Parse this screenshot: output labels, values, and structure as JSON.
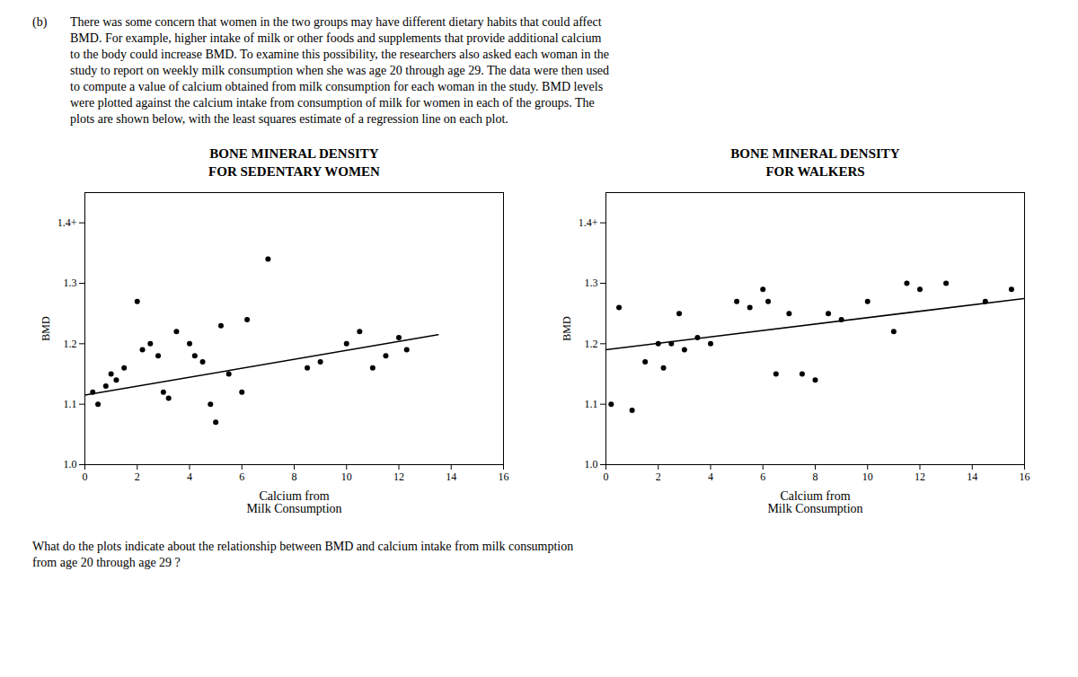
{
  "chart_data": [
    {
      "type": "scatter",
      "title": "BONE MINERAL DENSITY\nFOR SEDENTARY WOMEN",
      "x_label": "Calcium from\nMilk Consumption",
      "y_label": "BMD",
      "series": [
        {
          "type": "scatter",
          "color": "#000000",
          "x": [
            0.3,
            0.5,
            0.8,
            1.0,
            1.2,
            1.5,
            2.0,
            2.2,
            2.5,
            2.8,
            3.0,
            3.2,
            3.5,
            4.0,
            4.2,
            4.5,
            4.8,
            5.0,
            5.2,
            5.5,
            6.0,
            6.2,
            7.0,
            8.5,
            9.0,
            10.0,
            10.5,
            11.0,
            11.5,
            12.0,
            12.3
          ],
          "values": [
            1.12,
            1.1,
            1.13,
            1.15,
            1.14,
            1.16,
            1.27,
            1.19,
            1.2,
            1.18,
            1.12,
            1.11,
            1.22,
            1.2,
            1.18,
            1.17,
            1.1,
            1.07,
            1.23,
            1.15,
            1.12,
            1.24,
            1.34,
            1.16,
            1.17,
            1.2,
            1.22,
            1.16,
            1.18,
            1.21,
            1.19
          ]
        },
        {
          "type": "line",
          "color": "#000000",
          "x": [
            0,
            13.5
          ],
          "values": [
            1.115,
            1.215
          ]
        }
      ],
      "xlim": [
        0,
        16
      ],
      "xticks": [
        0,
        2,
        4,
        6,
        8,
        10,
        12,
        14,
        16
      ],
      "ylim": [
        1.0,
        1.45
      ],
      "yticks": [
        {
          "value": 1.0,
          "label": "1.0"
        },
        {
          "value": 1.1,
          "label": "1.1"
        },
        {
          "value": 1.2,
          "label": "1.2"
        },
        {
          "value": 1.3,
          "label": "1.3"
        },
        {
          "value": 1.4,
          "label": "1.4+"
        }
      ]
    },
    {
      "type": "scatter",
      "title": "BONE MINERAL DENSITY\nFOR WALKERS",
      "x_label": "Calcium from\nMilk Consumption",
      "y_label": "BMD",
      "series": [
        {
          "type": "scatter",
          "color": "#000000",
          "x": [
            0.2,
            0.5,
            1.0,
            1.5,
            2.0,
            2.2,
            2.5,
            2.8,
            3.0,
            3.5,
            4.0,
            5.0,
            5.5,
            6.0,
            6.2,
            6.5,
            7.0,
            7.5,
            8.0,
            8.5,
            9.0,
            10.0,
            11.0,
            11.5,
            12.0,
            13.0,
            14.5,
            15.5
          ],
          "values": [
            1.1,
            1.26,
            1.09,
            1.17,
            1.2,
            1.16,
            1.2,
            1.25,
            1.19,
            1.21,
            1.2,
            1.27,
            1.26,
            1.29,
            1.27,
            1.15,
            1.25,
            1.15,
            1.14,
            1.25,
            1.24,
            1.27,
            1.22,
            1.3,
            1.29,
            1.3,
            1.27,
            1.29
          ]
        },
        {
          "type": "line",
          "color": "#000000",
          "x": [
            0,
            16
          ],
          "values": [
            1.19,
            1.275
          ]
        }
      ],
      "xlim": [
        0,
        16
      ],
      "xticks": [
        0,
        2,
        4,
        6,
        8,
        10,
        12,
        14,
        16
      ],
      "ylim": [
        1.0,
        1.45
      ],
      "yticks": [
        {
          "value": 1.0,
          "label": "1.0"
        },
        {
          "value": 1.1,
          "label": "1.1"
        },
        {
          "value": 1.2,
          "label": "1.2"
        },
        {
          "value": 1.3,
          "label": "1.3"
        },
        {
          "value": 1.4,
          "label": "1.4+"
        }
      ]
    }
  ],
  "annotations": [
    "(b)",
    "There was some concern that women in the two groups may have different dietary habits that could affect\nBMD. For example, higher intake of milk or other foods and supplements that provide additional calcium\nto the body could increase BMD. To examine this possibility, the researchers also asked each woman in the\nstudy to report on weekly milk consumption when she was age 20 through age 29. The data were then used\nto compute a value of calcium obtained from milk consumption for each woman in the study. BMD levels\nwere plotted against the calcium intake from consumption of milk for women in each of the groups. The\nplots are shown below, with the least squares estimate of a regression line on each plot.",
    "What do the plots indicate about the relationship between BMD and calcium intake from milk consumption\nfrom age 20 through age 29 ?"
  ]
}
